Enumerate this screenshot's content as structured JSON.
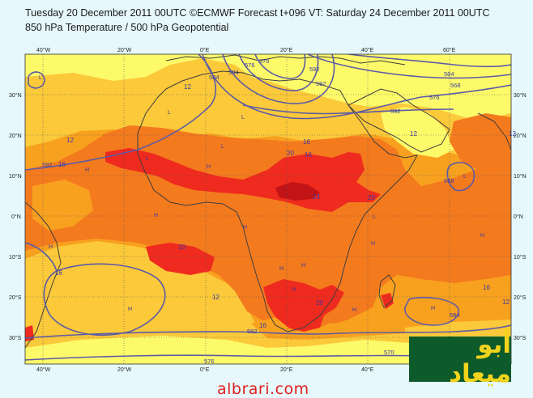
{
  "header": {
    "line1": "Tuesday 20 December 2011 00UTC ©ECMWF Forecast t+096 VT: Saturday 24 December 2011 00UTC",
    "line2": "850 hPa Temperature / 500 hPa Geopotential"
  },
  "map": {
    "lon_labels": [
      "40°W",
      "20°W",
      "0°E",
      "20°E",
      "40°E",
      "60°E"
    ],
    "lat_labels_left": [
      "30°N",
      "20°N",
      "10°N",
      "0°N",
      "10°S",
      "20°S",
      "30°S"
    ],
    "lat_labels_right": [
      "30°N",
      "20°N",
      "10°N",
      "0°N",
      "10°S",
      "20°S",
      "30°S"
    ],
    "temp_labels": [
      "12",
      "12",
      "16",
      "20",
      "16",
      "24",
      "20",
      "12",
      "16",
      "20",
      "20",
      "16",
      "12",
      "12",
      "16",
      "12",
      "16"
    ],
    "geo_labels": [
      "576",
      "584",
      "584",
      "592",
      "592",
      "584",
      "576",
      "592",
      "592",
      "568",
      "576",
      "588",
      "584",
      "570",
      "576",
      "592"
    ],
    "hl_labels": [
      "H",
      "H",
      "H",
      "H",
      "H",
      "L",
      "L",
      "L",
      "L",
      "H",
      "H",
      "H",
      "H",
      "L",
      "H",
      "H",
      "L",
      "H",
      "H",
      "L"
    ]
  },
  "watermark": {
    "arabic": "أبو ميعاد",
    "site": "albrari.com"
  },
  "colors": {
    "yellow": "#fdfa6a",
    "light_orange": "#fbc93a",
    "orange": "#f8a11f",
    "dark_orange": "#f47a1e",
    "red": "#ef2a1e",
    "dark_red": "#c21416",
    "contour": "#5c5ba6",
    "coast": "#3e3e3e"
  }
}
